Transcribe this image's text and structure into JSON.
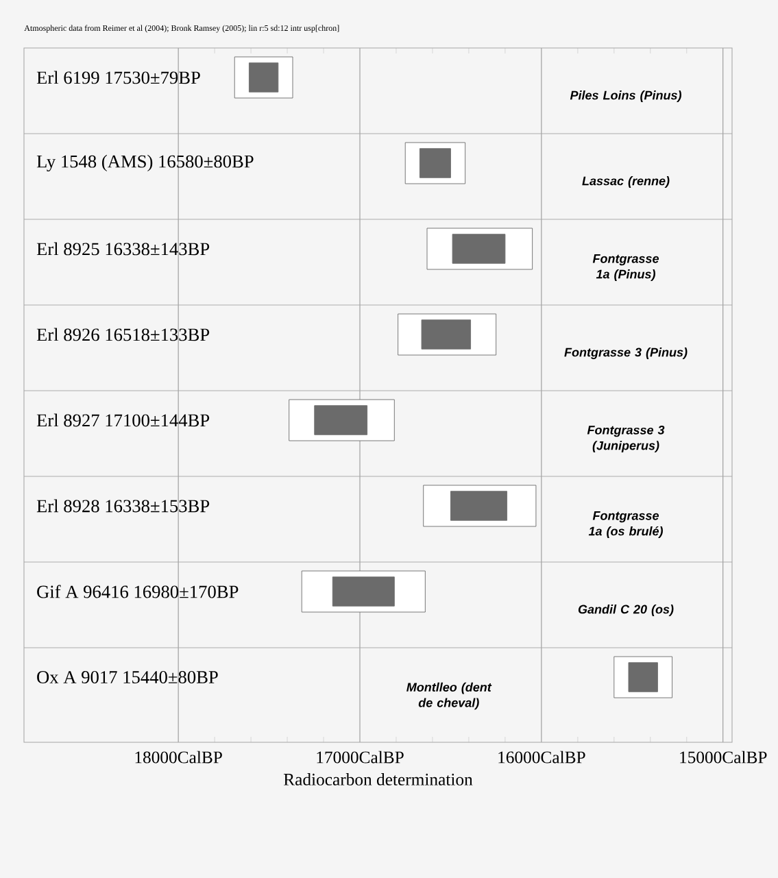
{
  "chart_data": {
    "type": "bar",
    "orientation": "horizontal",
    "title": "Atmospheric data from Reimer et al (2004); Bronk Ramsey (2005); lin r:5 sd:12 intr usp[chron]",
    "xlabel": "Radiocarbon determination",
    "categories": [
      "Erl 6199  17530±79BP",
      "Ly 1548 (AMS)  16580±80BP",
      "Erl 8925  16338±143BP",
      "Erl 8926  16518±133BP",
      "Erl 8927  17100±144BP",
      "Erl 8928  16338±153BP",
      "Gif A 96416  16980±170BP",
      "Ox A 9017  15440±80BP"
    ],
    "series": [
      {
        "color": "#ffffff",
        "base": [
          17370,
          16420,
          16050,
          16250,
          16810,
          16030,
          16640,
          15280
        ],
        "values": [
          320,
          330,
          580,
          540,
          580,
          620,
          680,
          320
        ]
      },
      {
        "color": "#6b6b6b",
        "base": [
          17450,
          16500,
          16200,
          16390,
          16960,
          16190,
          16810,
          15360
        ],
        "values": [
          160,
          170,
          290,
          270,
          290,
          310,
          340,
          160
        ]
      }
    ],
    "xlim": [
      18850,
      14950
    ],
    "xticks": [
      {
        "value": 18000,
        "label": "18000CalBP"
      },
      {
        "value": 17000,
        "label": "17000CalBP"
      },
      {
        "value": 16000,
        "label": "16000CalBP"
      },
      {
        "value": 15000,
        "label": "15000CalBP"
      }
    ],
    "grid": "x",
    "annotations": [
      "Piles Loins (Pinus)",
      "Lassac (renne)",
      "Fontgrasse 1a (Pinus)",
      "Fontgrasse 3 (Pinus)",
      "Fontgrasse 3 (Juniperus)",
      "Fontgrasse 1a (os brulé)",
      "Gandil C 20 (os)",
      "Montlleo (dent de cheval)"
    ]
  }
}
